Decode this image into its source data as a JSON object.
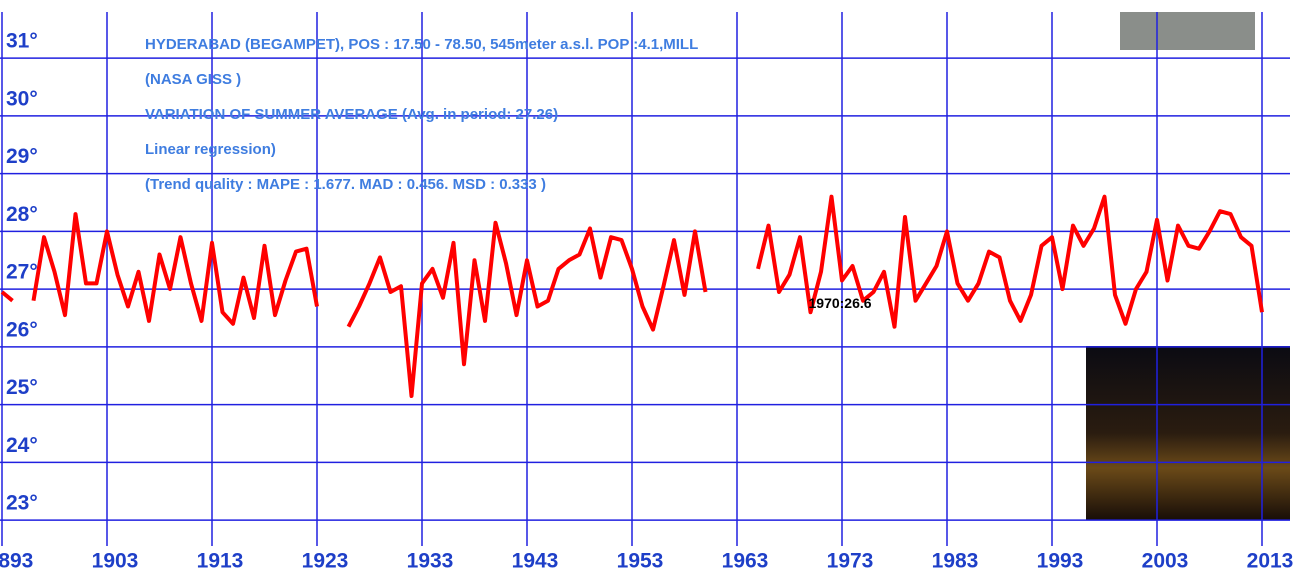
{
  "chart_data": {
    "type": "line",
    "title": "HYDERABAD (BEGAMPET), POS : 17.50 - 78.50, 545meter a.s.l.  POP :4.1,MILL",
    "subtitle": [
      "(NASA GISS )",
      "VARIATION OF SUMMER AVERAGE  (Avg. in period: 27.26)",
      "Linear regression)",
      "(Trend quality : MAPE : 1.677. MAD : 0.456. MSD : 0.333 )"
    ],
    "annotation": "1970:26.6",
    "x": [
      1893,
      1894,
      1895,
      1896,
      1897,
      1898,
      1899,
      1900,
      1901,
      1902,
      1903,
      1904,
      1905,
      1906,
      1907,
      1908,
      1909,
      1910,
      1911,
      1912,
      1913,
      1914,
      1915,
      1916,
      1917,
      1918,
      1919,
      1920,
      1921,
      1922,
      1923,
      1924,
      1925,
      1926,
      1927,
      1928,
      1929,
      1930,
      1931,
      1932,
      1933,
      1934,
      1935,
      1936,
      1937,
      1938,
      1939,
      1940,
      1941,
      1942,
      1943,
      1944,
      1945,
      1946,
      1947,
      1948,
      1949,
      1950,
      1951,
      1952,
      1953,
      1954,
      1955,
      1956,
      1957,
      1958,
      1959,
      1960,
      1961,
      1962,
      1963,
      1964,
      1965,
      1966,
      1967,
      1968,
      1969,
      1970,
      1971,
      1972,
      1973,
      1974,
      1975,
      1976,
      1977,
      1978,
      1979,
      1980,
      1981,
      1982,
      1983,
      1984,
      1985,
      1986,
      1987,
      1988,
      1989,
      1990,
      1991,
      1992,
      1993,
      1994,
      1995,
      1996,
      1997,
      1998,
      1999,
      2000,
      2001,
      2002,
      2003,
      2004,
      2005,
      2006,
      2007,
      2008,
      2009,
      2010,
      2011,
      2012,
      2013
    ],
    "series": [
      {
        "name": "Summer average",
        "color": "#ff0000",
        "values": [
          26.95,
          26.8,
          null,
          26.8,
          27.9,
          27.3,
          26.55,
          28.3,
          27.1,
          27.1,
          28.0,
          27.25,
          26.7,
          27.3,
          26.45,
          27.6,
          27.0,
          27.9,
          27.1,
          26.45,
          27.8,
          26.6,
          26.4,
          27.2,
          26.5,
          27.75,
          26.55,
          27.15,
          27.65,
          27.7,
          26.7,
          null,
          null,
          26.35,
          26.7,
          27.1,
          27.55,
          26.95,
          27.05,
          25.15,
          27.1,
          27.35,
          26.85,
          27.8,
          25.7,
          27.5,
          26.45,
          28.15,
          27.45,
          26.55,
          27.5,
          26.7,
          26.8,
          27.35,
          27.5,
          27.6,
          28.05,
          27.2,
          27.9,
          27.85,
          27.35,
          26.7,
          26.3,
          27.05,
          27.85,
          26.9,
          28.0,
          26.95,
          null,
          null,
          null,
          null,
          27.35,
          28.1,
          26.95,
          27.25,
          27.9,
          26.6,
          27.3,
          28.6,
          27.15,
          27.4,
          26.8,
          26.95,
          27.3,
          26.35,
          28.25,
          26.8,
          27.1,
          27.4,
          28.0,
          27.1,
          26.8,
          27.1,
          27.65,
          27.55,
          26.8,
          26.45,
          26.9,
          27.75,
          27.9,
          27.0,
          28.1,
          27.75,
          28.05,
          28.6,
          26.9,
          26.4,
          27.0,
          27.3,
          28.2,
          27.15,
          28.1,
          27.75,
          27.7,
          28.0,
          28.35,
          28.3,
          27.9,
          27.75,
          26.6
        ]
      }
    ],
    "xlim": [
      1893,
      2013
    ],
    "xticks": [
      1893,
      1903,
      1913,
      1923,
      1933,
      1943,
      1953,
      1963,
      1973,
      1983,
      1993,
      2003,
      2013
    ],
    "ylim": [
      22.5,
      32
    ],
    "yticks": [
      {
        "value": 23,
        "label": "23°"
      },
      {
        "value": 24,
        "label": "24°"
      },
      {
        "value": 25,
        "label": "25°"
      },
      {
        "value": 26,
        "label": "26°"
      },
      {
        "value": 27,
        "label": "27°"
      },
      {
        "value": 28,
        "label": "28°"
      },
      {
        "value": 29,
        "label": "29°"
      },
      {
        "value": 30,
        "label": "30°"
      },
      {
        "value": 31,
        "label": "31°"
      }
    ],
    "grid": true
  }
}
